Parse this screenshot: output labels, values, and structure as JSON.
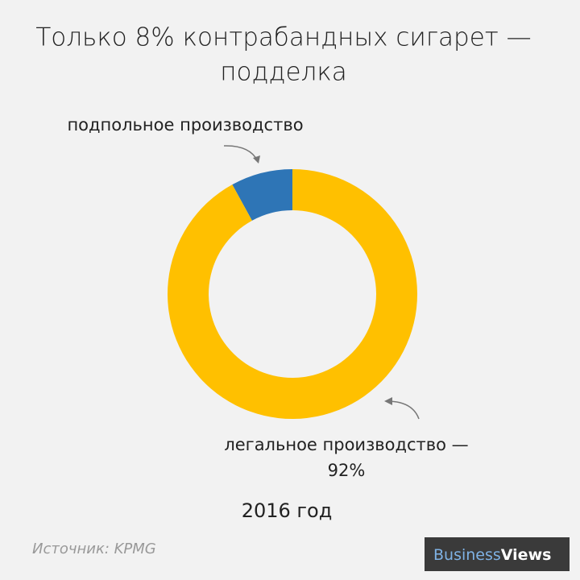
{
  "chart_data": {
    "type": "donut",
    "title": "Только 8% контрабандных сигарет —",
    "title_line2": "подделка",
    "categories": [
      "подпольное производство",
      "легальное производство —"
    ],
    "values": [
      8,
      92
    ],
    "value_labels": [
      null,
      "92%"
    ],
    "colors": [
      "#2e75b6",
      "#ffc000"
    ],
    "subtitle": "2016 год",
    "source": "Источник: KPMG"
  },
  "logo": {
    "part1": "Business",
    "part2": "Views"
  }
}
